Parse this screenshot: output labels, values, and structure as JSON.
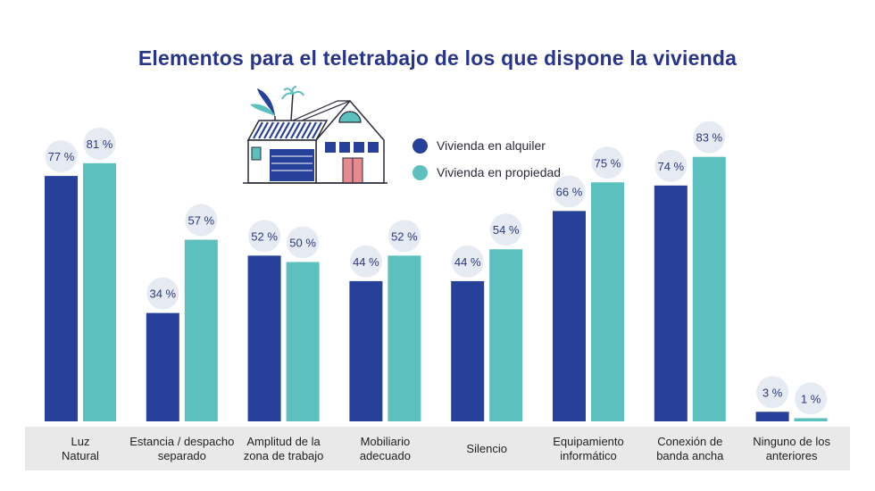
{
  "title": "Elementos para el teletrabajo de los que dispone la vivienda",
  "legend": {
    "rent_label": "Vivienda en alquiler",
    "own_label": "Vivienda en propiedad"
  },
  "colors": {
    "rent": "#27409a",
    "own": "#5cc0bf",
    "bubble": "#e6eaf3",
    "label_band": "#e9e9e9",
    "title": "#27348b",
    "value_text": "#2c3a7a"
  },
  "chart_data": {
    "type": "bar",
    "title": "Elementos para el teletrabajo de los que dispone la vivienda",
    "categories": [
      "Luz\nNatural",
      "Estancia / despacho\nseparado",
      "Amplitud de la\nzona de trabajo",
      "Mobiliario\nadecuado",
      "Silencio",
      "Equipamiento\ninformático",
      "Conexión de\nbanda ancha",
      "Ninguno de los\nanteriores"
    ],
    "series": [
      {
        "name": "Vivienda en alquiler",
        "values": [
          77,
          34,
          52,
          44,
          44,
          66,
          74,
          3
        ]
      },
      {
        "name": "Vivienda en propiedad",
        "values": [
          81,
          57,
          50,
          52,
          54,
          75,
          83,
          1
        ]
      }
    ],
    "ylim": [
      0,
      100
    ],
    "value_suffix": " %",
    "grid": false,
    "legend_position": "top-center"
  }
}
